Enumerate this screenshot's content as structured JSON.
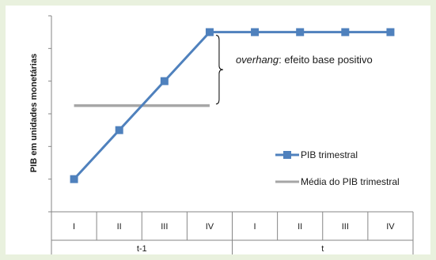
{
  "chart_data": {
    "type": "line",
    "title": "",
    "ylabel": "PIB em unidades monetárias",
    "xlabel": "",
    "x_quarters": [
      "I",
      "II",
      "III",
      "IV",
      "I",
      "II",
      "III",
      "IV"
    ],
    "x_groups": [
      {
        "label": "t-1",
        "span": [
          0,
          3
        ]
      },
      {
        "label": "t",
        "span": [
          4,
          7
        ]
      }
    ],
    "ylim": [
      0,
      6
    ],
    "y_tick_count": 6,
    "y_tick_labels_shown": false,
    "grid": false,
    "legend_position": "right-center",
    "series": [
      {
        "name": "PIB trimestral",
        "color": "#4f81bd",
        "marker": "square",
        "x_index": [
          0,
          1,
          2,
          3,
          4,
          5,
          6,
          7
        ],
        "values": [
          1,
          2.5,
          4,
          5.5,
          5.5,
          5.5,
          5.5,
          5.5
        ]
      },
      {
        "name": "Média do PIB trimestral",
        "color": "#a6a6a6",
        "marker": "none",
        "x_index": [
          0,
          1,
          2,
          3
        ],
        "values": [
          3.25,
          3.25,
          3.25,
          3.25
        ]
      }
    ],
    "annotation": {
      "italic_part": "overhang",
      "rest": ": efeito base positivo",
      "bracket_from": 3.25,
      "bracket_to": 5.5,
      "at_index": 3
    }
  }
}
